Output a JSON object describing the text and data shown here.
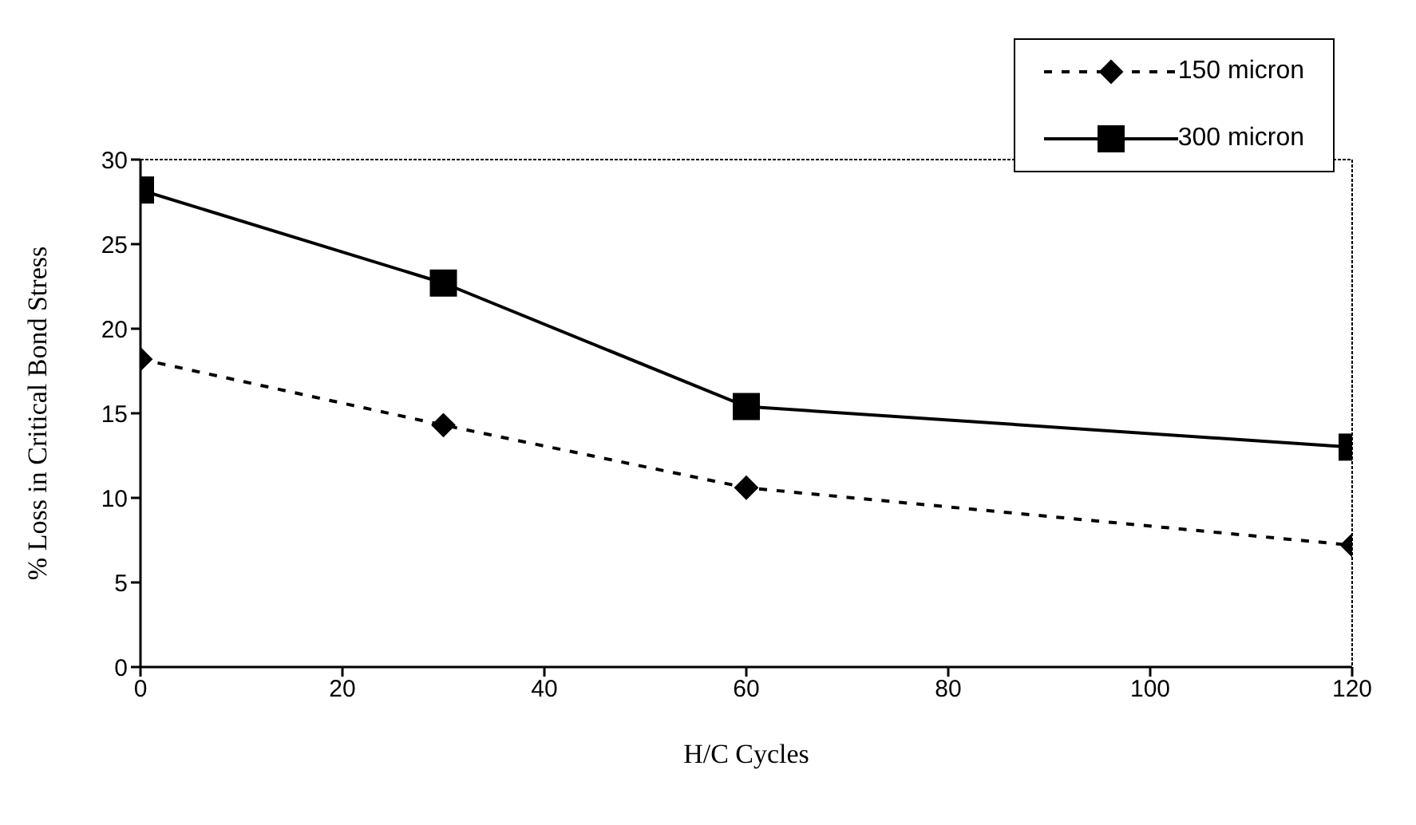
{
  "chart_data": {
    "type": "line",
    "xlabel": "H/C Cycles",
    "ylabel": "% Loss in Critical Bond Stress",
    "x": [
      0,
      30,
      60,
      120
    ],
    "series": [
      {
        "name": "150 micron",
        "color": "#000000",
        "values": [
          18.2,
          14.3,
          10.6,
          7.2
        ],
        "marker": "diamond",
        "line_style": "dashed"
      },
      {
        "name": "300 micron",
        "color": "#000000",
        "values": [
          28.2,
          22.7,
          15.4,
          13.0
        ],
        "marker": "square",
        "line_style": "solid"
      }
    ],
    "xlim": [
      0,
      120
    ],
    "xticks": [
      0,
      20,
      40,
      60,
      80,
      100,
      120
    ],
    "ylim": [
      0,
      30
    ],
    "yticks": [
      0,
      5,
      10,
      15,
      20,
      25,
      30
    ],
    "grid": false,
    "legend": "top right"
  }
}
